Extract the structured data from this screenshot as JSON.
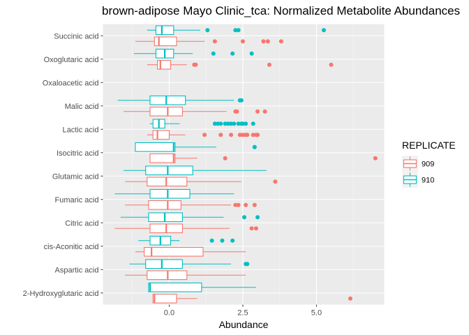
{
  "chart_data": {
    "type": "boxplot",
    "title": "brown-adipose Mayo Clinic_tca: Normalized Metabolite Abundances",
    "xlabel": "Abundance",
    "ylabel": "",
    "x_ticks": [
      0,
      2.5,
      5
    ],
    "x_tick_labels": [
      "0.0",
      "2.5",
      "5.0"
    ],
    "xlim": [
      -2.25,
      7.3
    ],
    "grid": true,
    "legend": {
      "title": "REPLICATE",
      "position": "right"
    },
    "categories": [
      "Succinic acid",
      "Oxoglutaric acid",
      "Oxaloacetic acid",
      "Malic acid",
      "Lactic acid",
      "Isocitric acid",
      "Glutamic acid",
      "Fumaric acid",
      "Citric acid",
      "cis-Aconitic acid",
      "Aspartic acid",
      "2-Hydroxyglutaric acid"
    ],
    "series": [
      {
        "name": "909",
        "color": "#F8766D",
        "boxes": [
          {
            "category": "Succinic acid",
            "whisker_low": -1.15,
            "q1": -0.5,
            "median": -0.35,
            "q3": 0.25,
            "whisker_high": 1.2,
            "outliers": [
              1.55,
              2.5,
              3.2,
              3.35,
              3.8
            ]
          },
          {
            "category": "Oxoglutaric acid",
            "whisker_low": -0.75,
            "q1": -0.4,
            "median": -0.3,
            "q3": 0.05,
            "whisker_high": 0.6,
            "outliers": [
              0.85,
              0.9,
              3.4,
              5.5
            ]
          },
          {
            "category": "Malic acid",
            "whisker_low": -1.55,
            "q1": -0.65,
            "median": -0.05,
            "q3": 0.45,
            "whisker_high": 1.95,
            "outliers": [
              2.25,
              2.3,
              3.0,
              3.25
            ]
          },
          {
            "category": "Lactic acid",
            "whisker_low": -0.75,
            "q1": -0.55,
            "median": -0.4,
            "q3": 0.0,
            "whisker_high": 0.55,
            "outliers": [
              1.2,
              1.75,
              2.1,
              2.4,
              2.5,
              2.6,
              2.65,
              2.85,
              2.95,
              3.0
            ]
          },
          {
            "category": "Isocitric acid",
            "whisker_low": -0.65,
            "q1": -0.65,
            "median": 0.15,
            "q3": 0.2,
            "whisker_high": 0.95,
            "outliers": [
              1.9,
              7.0
            ]
          },
          {
            "category": "Glutamic acid",
            "whisker_low": -1.5,
            "q1": -0.75,
            "median": -0.1,
            "q3": 0.6,
            "whisker_high": 2.45,
            "outliers": [
              3.6
            ]
          },
          {
            "category": "Fumaric acid",
            "whisker_low": -1.5,
            "q1": -0.7,
            "median": -0.05,
            "q3": 0.4,
            "whisker_high": 2.1,
            "outliers": [
              2.25,
              2.35,
              2.6,
              2.9
            ]
          },
          {
            "category": "Citric acid",
            "whisker_low": -1.85,
            "q1": -0.65,
            "median": -0.1,
            "q3": 0.45,
            "whisker_high": 2.05,
            "outliers": [
              2.8,
              2.95
            ]
          },
          {
            "category": "cis-Aconitic acid",
            "whisker_low": -1.15,
            "q1": -0.85,
            "median": -0.6,
            "q3": 1.15,
            "whisker_high": 2.6,
            "outliers": []
          },
          {
            "category": "Aspartic acid",
            "whisker_low": -1.5,
            "q1": -0.75,
            "median": -0.05,
            "q3": 0.6,
            "whisker_high": 2.6,
            "outliers": []
          },
          {
            "category": "2-Hydroxyglutaric acid",
            "whisker_low": -0.55,
            "q1": -0.55,
            "median": -0.5,
            "q3": 0.25,
            "whisker_high": 0.95,
            "outliers": [
              6.15
            ]
          }
        ]
      },
      {
        "name": "910",
        "color": "#00BFC4",
        "boxes": [
          {
            "category": "Succinic acid",
            "whisker_low": -0.75,
            "q1": -0.45,
            "median": -0.25,
            "q3": 0.15,
            "whisker_high": 1.05,
            "outliers": [
              1.3,
              2.25,
              2.35,
              5.25
            ]
          },
          {
            "category": "Oxoglutaric acid",
            "whisker_low": -1.2,
            "q1": -0.45,
            "median": -0.15,
            "q3": 0.15,
            "whisker_high": 0.8,
            "outliers": [
              1.5,
              2.15,
              2.8
            ]
          },
          {
            "category": "Malic acid",
            "whisker_low": -1.75,
            "q1": -0.65,
            "median": -0.1,
            "q3": 0.55,
            "whisker_high": 2.2,
            "outliers": [
              2.4,
              2.45
            ]
          },
          {
            "category": "Lactic acid",
            "whisker_low": -0.65,
            "q1": -0.55,
            "median": -0.35,
            "q3": -0.15,
            "whisker_high": 0.35,
            "outliers": [
              1.55,
              1.65,
              1.75,
              1.9,
              2.0,
              2.1,
              2.2,
              2.35,
              2.45,
              2.5,
              2.6,
              2.85
            ]
          },
          {
            "category": "Isocitric acid",
            "whisker_low": -1.15,
            "q1": -1.15,
            "median": 0.15,
            "q3": 0.2,
            "whisker_high": 1.6,
            "outliers": [
              2.9,
              2.9
            ]
          },
          {
            "category": "Glutamic acid",
            "whisker_low": -1.55,
            "q1": -0.8,
            "median": -0.05,
            "q3": 0.8,
            "whisker_high": 3.3,
            "outliers": []
          },
          {
            "category": "Fumaric acid",
            "whisker_low": -1.85,
            "q1": -0.65,
            "median": -0.05,
            "q3": 0.7,
            "whisker_high": 2.2,
            "outliers": []
          },
          {
            "category": "Citric acid",
            "whisker_low": -1.65,
            "q1": -0.7,
            "median": -0.15,
            "q3": 0.45,
            "whisker_high": 1.85,
            "outliers": [
              2.55,
              3.0
            ]
          },
          {
            "category": "cis-Aconitic acid",
            "whisker_low": -1.05,
            "q1": -0.65,
            "median": -0.3,
            "q3": 0.05,
            "whisker_high": 0.35,
            "outliers": [
              1.45,
              1.8,
              2.15
            ]
          },
          {
            "category": "Aspartic acid",
            "whisker_low": -1.35,
            "q1": -0.8,
            "median": -0.25,
            "q3": 0.45,
            "whisker_high": 2.1,
            "outliers": [
              2.6,
              2.65
            ]
          },
          {
            "category": "2-Hydroxyglutaric acid",
            "whisker_low": -0.7,
            "q1": -0.7,
            "median": -0.65,
            "q3": 1.1,
            "whisker_high": 2.95,
            "outliers": []
          }
        ]
      }
    ]
  }
}
